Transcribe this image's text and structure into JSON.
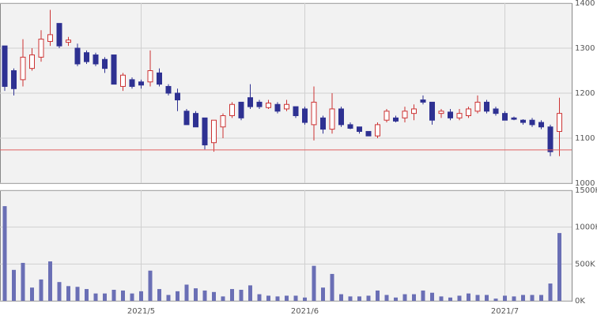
{
  "chart_data": [
    {
      "type": "candlestick",
      "up_color": "#cc3333",
      "down_color": "#2e3192",
      "ylim": [
        1000,
        1400
      ],
      "yticks": [
        1000,
        1100,
        1200,
        1300,
        1400
      ],
      "grid": true,
      "reference_line": 1074,
      "reference_color": "#e06060",
      "open": [
        1305,
        1250,
        1230,
        1255,
        1280,
        1315,
        1355,
        1313,
        1300,
        1290,
        1285,
        1275,
        1285,
        1215,
        1230,
        1225,
        1225,
        1245,
        1215,
        1200,
        1160,
        1155,
        1145,
        1090,
        1125,
        1150,
        1180,
        1190,
        1180,
        1168,
        1175,
        1165,
        1170,
        1165,
        1130,
        1145,
        1120,
        1165,
        1130,
        1125,
        1115,
        1105,
        1140,
        1145,
        1145,
        1155,
        1185,
        1180,
        1155,
        1158,
        1145,
        1150,
        1160,
        1180,
        1165,
        1155,
        1145,
        1140,
        1140,
        1135,
        1125,
        1115
      ],
      "high": [
        1305,
        1255,
        1320,
        1300,
        1340,
        1385,
        1355,
        1325,
        1310,
        1295,
        1290,
        1280,
        1285,
        1245,
        1235,
        1230,
        1295,
        1255,
        1220,
        1210,
        1165,
        1160,
        1145,
        1140,
        1155,
        1180,
        1180,
        1220,
        1185,
        1185,
        1180,
        1185,
        1170,
        1170,
        1215,
        1150,
        1200,
        1170,
        1135,
        1125,
        1115,
        1135,
        1165,
        1150,
        1170,
        1175,
        1195,
        1180,
        1165,
        1165,
        1165,
        1170,
        1195,
        1185,
        1170,
        1160,
        1148,
        1142,
        1145,
        1140,
        1130,
        1190
      ],
      "low": [
        1205,
        1195,
        1215,
        1250,
        1270,
        1305,
        1300,
        1305,
        1260,
        1265,
        1260,
        1245,
        1220,
        1205,
        1210,
        1210,
        1215,
        1215,
        1195,
        1160,
        1130,
        1125,
        1075,
        1070,
        1100,
        1145,
        1140,
        1165,
        1165,
        1165,
        1155,
        1160,
        1145,
        1130,
        1095,
        1110,
        1110,
        1125,
        1120,
        1110,
        1105,
        1100,
        1135,
        1135,
        1135,
        1140,
        1175,
        1130,
        1145,
        1140,
        1140,
        1145,
        1155,
        1155,
        1150,
        1140,
        1140,
        1130,
        1125,
        1120,
        1060,
        1060
      ],
      "close": [
        1215,
        1210,
        1280,
        1285,
        1320,
        1330,
        1305,
        1318,
        1265,
        1270,
        1265,
        1255,
        1220,
        1240,
        1215,
        1218,
        1250,
        1220,
        1200,
        1185,
        1130,
        1125,
        1085,
        1140,
        1150,
        1175,
        1145,
        1170,
        1170,
        1178,
        1160,
        1175,
        1150,
        1135,
        1180,
        1120,
        1165,
        1130,
        1122,
        1115,
        1105,
        1130,
        1160,
        1138,
        1160,
        1165,
        1180,
        1140,
        1160,
        1145,
        1155,
        1165,
        1180,
        1160,
        1155,
        1140,
        1142,
        1135,
        1130,
        1125,
        1070,
        1155
      ]
    },
    {
      "type": "bar",
      "color": "#6a6fb5",
      "ylim": [
        0,
        1500000
      ],
      "yticks": [
        {
          "value": 0,
          "label": "0K"
        },
        {
          "value": 500000,
          "label": "500K"
        },
        {
          "value": 1000000,
          "label": "1000K"
        },
        {
          "value": 1500000,
          "label": "1500K"
        }
      ],
      "grid": true,
      "categories": [
        null,
        null,
        null,
        null,
        null,
        null,
        null,
        null,
        null,
        null,
        null,
        null,
        null,
        null,
        null,
        "2021/5",
        null,
        null,
        null,
        null,
        null,
        null,
        null,
        null,
        null,
        null,
        null,
        null,
        null,
        null,
        null,
        null,
        null,
        "2021/6",
        null,
        null,
        null,
        null,
        null,
        null,
        null,
        null,
        null,
        null,
        null,
        null,
        null,
        null,
        null,
        null,
        null,
        null,
        null,
        null,
        null,
        "2021/7",
        null,
        null,
        null,
        null,
        null,
        null
      ],
      "values": [
        1285000,
        420000,
        515000,
        180000,
        290000,
        535000,
        255000,
        200000,
        190000,
        160000,
        100000,
        100000,
        150000,
        140000,
        100000,
        130000,
        410000,
        160000,
        80000,
        130000,
        220000,
        170000,
        140000,
        120000,
        60000,
        160000,
        150000,
        210000,
        90000,
        70000,
        60000,
        70000,
        70000,
        45000,
        475000,
        180000,
        365000,
        90000,
        60000,
        60000,
        70000,
        140000,
        80000,
        45000,
        90000,
        90000,
        140000,
        110000,
        60000,
        45000,
        70000,
        100000,
        80000,
        80000,
        30000,
        70000,
        60000,
        80000,
        80000,
        80000,
        235000,
        920000
      ]
    }
  ]
}
